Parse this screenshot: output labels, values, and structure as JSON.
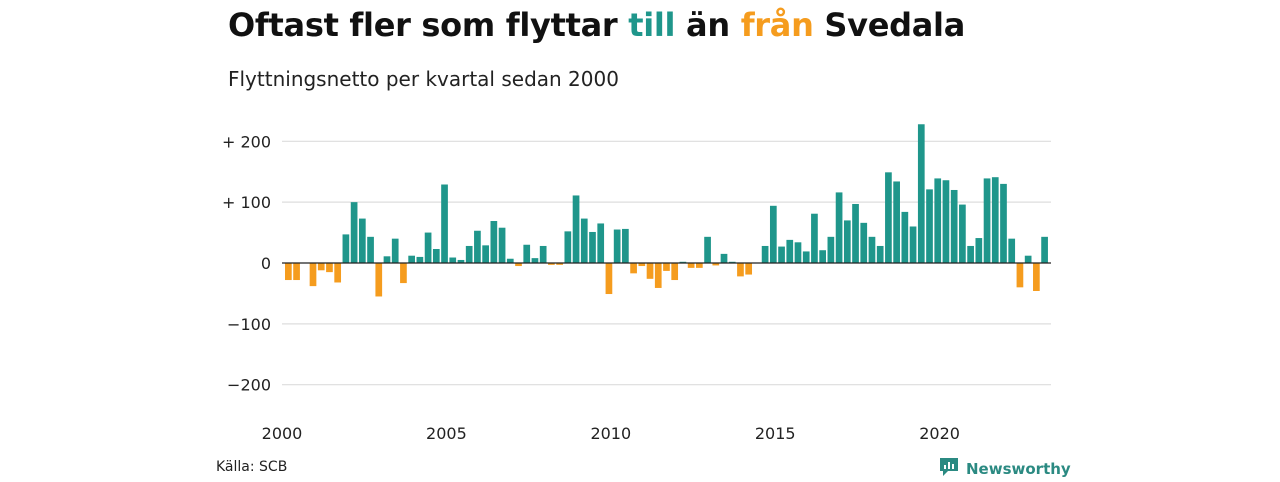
{
  "title": {
    "part1": "Oftast fler som flyttar ",
    "till": "till",
    "part2": " än ",
    "fran": "från",
    "part3": " Svedala"
  },
  "subtitle": "Flyttningsnetto per kvartal sedan 2000",
  "source": "Källa: SCB",
  "brand": {
    "name": "Newsworthy",
    "icon": "newsworthy-logo-icon"
  },
  "colors": {
    "positive": "#1f968b",
    "negative": "#f59c1e",
    "grid": "#dddddd",
    "zero": "#222222",
    "brand": "#2b8a82"
  },
  "chart_data": {
    "type": "bar",
    "title": "Flyttningsnetto per kvartal sedan 2000",
    "x_start": "2000-Q1",
    "x_ticks": [
      "2000",
      "2005",
      "2010",
      "2015",
      "2020"
    ],
    "y_ticks": [
      "+ 200",
      "+ 100",
      "0",
      "−100",
      "−200"
    ],
    "y_tick_values": [
      200,
      100,
      0,
      -100,
      -200
    ],
    "ylim": [
      -220,
      230
    ],
    "grid": true,
    "values": [
      -28,
      -28,
      0,
      -38,
      -12,
      -15,
      -32,
      47,
      100,
      73,
      43,
      -55,
      11,
      40,
      -33,
      12,
      10,
      50,
      23,
      129,
      9,
      5,
      28,
      53,
      29,
      69,
      58,
      7,
      -5,
      30,
      8,
      28,
      -3,
      -3,
      52,
      111,
      73,
      51,
      65,
      -51,
      55,
      56,
      -17,
      -5,
      -26,
      -41,
      -13,
      -28,
      2,
      -8,
      -8,
      43,
      -4,
      15,
      2,
      -22,
      -19,
      0,
      28,
      94,
      27,
      38,
      34,
      19,
      81,
      21,
      43,
      116,
      70,
      97,
      66,
      43,
      28,
      149,
      134,
      84,
      60,
      228,
      121,
      139,
      136,
      120,
      96,
      28,
      41,
      139,
      141,
      130,
      40,
      -40,
      12,
      -46,
      43
    ]
  }
}
